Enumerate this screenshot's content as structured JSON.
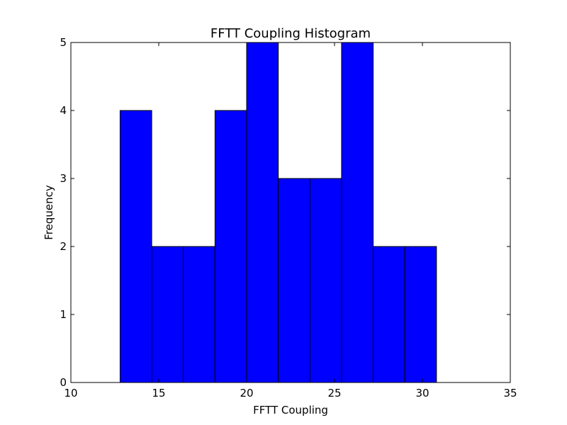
{
  "chart_data": {
    "type": "bar",
    "title": "FFTT Coupling Histogram",
    "xlabel": "FFTT Coupling",
    "ylabel": "Frequency",
    "xlim": [
      10,
      35
    ],
    "ylim": [
      0,
      5
    ],
    "xticks": [
      "10",
      "15",
      "20",
      "25",
      "30",
      "35"
    ],
    "yticks": [
      "0",
      "1",
      "2",
      "3",
      "4",
      "5"
    ],
    "bins": [
      {
        "x0": 12.8,
        "x1": 14.6,
        "count": 4
      },
      {
        "x0": 14.6,
        "x1": 16.4,
        "count": 2
      },
      {
        "x0": 16.4,
        "x1": 18.2,
        "count": 2
      },
      {
        "x0": 18.2,
        "x1": 20.0,
        "count": 4
      },
      {
        "x0": 20.0,
        "x1": 21.8,
        "count": 5
      },
      {
        "x0": 21.8,
        "x1": 23.6,
        "count": 3
      },
      {
        "x0": 23.6,
        "x1": 25.4,
        "count": 3
      },
      {
        "x0": 25.4,
        "x1": 27.2,
        "count": 5
      },
      {
        "x0": 27.2,
        "x1": 29.0,
        "count": 2
      },
      {
        "x0": 29.0,
        "x1": 30.8,
        "count": 2
      }
    ],
    "bar_color": "#0000ff",
    "edge_color": "#000000",
    "grid": false,
    "legend": "none"
  }
}
